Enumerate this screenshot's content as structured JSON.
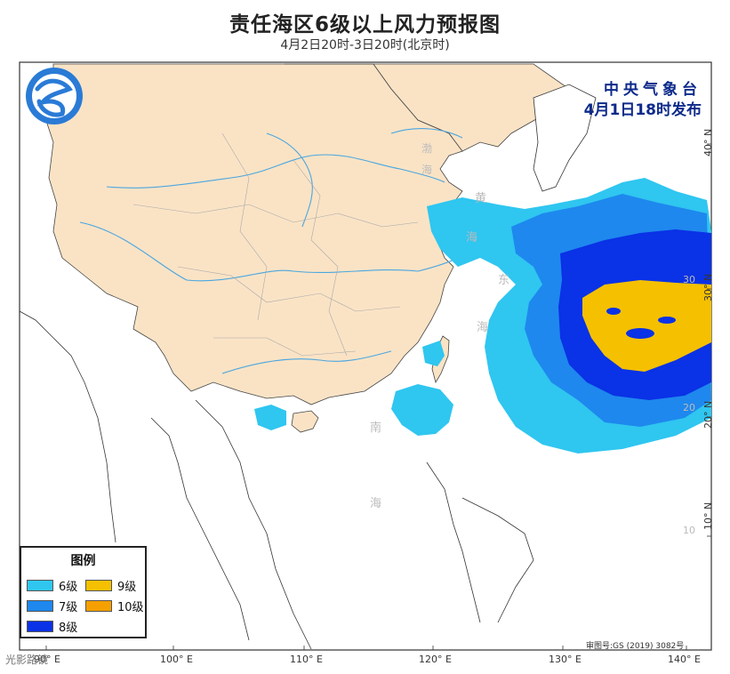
{
  "title": "责任海区6级以上风力预报图",
  "subtitle": "4月2日20时-3日20时(北京时)",
  "issuer": {
    "name": "中央气象台",
    "time": "4月1日18时发布"
  },
  "legend": {
    "title": "图例",
    "items": [
      {
        "label": "6级",
        "color": "#2fc6f0"
      },
      {
        "label": "9级",
        "color": "#f5c000"
      },
      {
        "label": "7级",
        "color": "#1e88ee"
      },
      {
        "label": "10级",
        "color": "#f5a000"
      },
      {
        "label": "8级",
        "color": "#0a32e6"
      }
    ]
  },
  "sea_labels": {
    "bohai_1": "渤",
    "bohai_2": "海",
    "huang_1": "黄",
    "huang_2": "海",
    "dong_1": "东",
    "dong_2": "海",
    "nan_1": "南",
    "nan_2": "海"
  },
  "lon_labels": [
    "90° E",
    "100° E",
    "110° E",
    "120° E",
    "130° E",
    "140° E"
  ],
  "lat_labels": [
    "10° N",
    "20° N",
    "30° N",
    "40° N"
  ],
  "grid_labels": [
    "30",
    "20",
    "10"
  ],
  "approval": "审图号:GS (2019) 3082号",
  "watermark": "光影路镜",
  "colors": {
    "land": "#fae3c5",
    "sea": "#ffffff",
    "river": "#4aa6e0",
    "border": "#999999",
    "coast": "#333333"
  }
}
